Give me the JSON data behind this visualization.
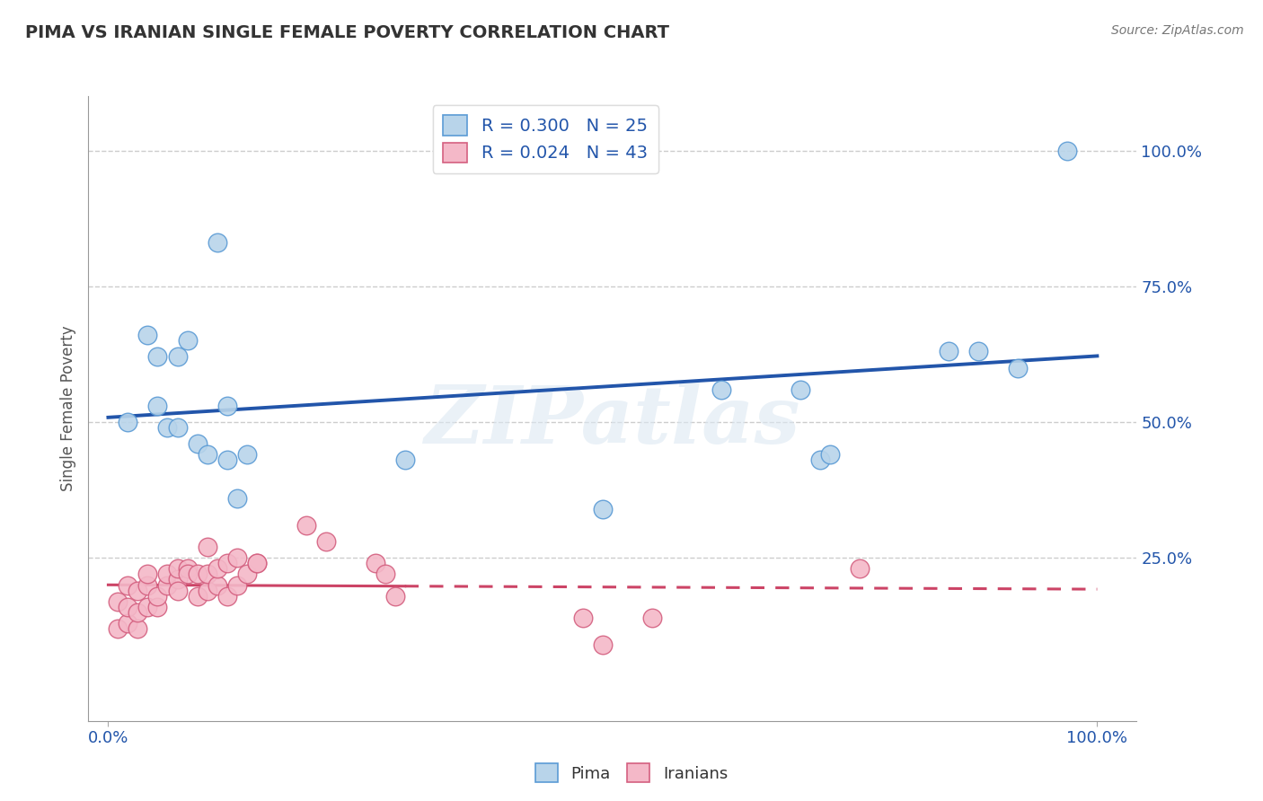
{
  "title": "PIMA VS IRANIAN SINGLE FEMALE POVERTY CORRELATION CHART",
  "source": "Source: ZipAtlas.com",
  "ylabel": "Single Female Poverty",
  "ytick_labels": [
    "100.0%",
    "75.0%",
    "50.0%",
    "25.0%"
  ],
  "ytick_values": [
    1.0,
    0.75,
    0.5,
    0.25
  ],
  "xtick_labels": [
    "0.0%",
    "100.0%"
  ],
  "xtick_values": [
    0.0,
    1.0
  ],
  "legend_r_pima": "R = 0.300",
  "legend_n_pima": "N = 25",
  "legend_r_iran": "R = 0.024",
  "legend_n_iran": "N = 43",
  "pima_color": "#b8d4ea",
  "pima_edge_color": "#5b9bd5",
  "iran_color": "#f4b8c8",
  "iran_edge_color": "#d46080",
  "pima_line_color": "#2255aa",
  "iran_line_color": "#cc4466",
  "watermark": "ZIPatlas",
  "pima_x": [
    0.02,
    0.04,
    0.05,
    0.05,
    0.06,
    0.07,
    0.07,
    0.08,
    0.09,
    0.1,
    0.11,
    0.12,
    0.12,
    0.13,
    0.14,
    0.3,
    0.5,
    0.62,
    0.7,
    0.72,
    0.73,
    0.85,
    0.88,
    0.92,
    0.97
  ],
  "pima_y": [
    0.5,
    0.66,
    0.62,
    0.53,
    0.49,
    0.62,
    0.49,
    0.65,
    0.46,
    0.44,
    0.83,
    0.43,
    0.53,
    0.36,
    0.44,
    0.43,
    0.34,
    0.56,
    0.56,
    0.43,
    0.44,
    0.63,
    0.63,
    0.6,
    1.0
  ],
  "iran_x": [
    0.01,
    0.01,
    0.02,
    0.02,
    0.02,
    0.03,
    0.03,
    0.03,
    0.04,
    0.04,
    0.04,
    0.05,
    0.05,
    0.06,
    0.06,
    0.07,
    0.07,
    0.07,
    0.08,
    0.08,
    0.09,
    0.09,
    0.1,
    0.1,
    0.1,
    0.11,
    0.11,
    0.12,
    0.12,
    0.13,
    0.13,
    0.14,
    0.15,
    0.15,
    0.2,
    0.22,
    0.27,
    0.28,
    0.29,
    0.48,
    0.55,
    0.76,
    0.5
  ],
  "iran_y": [
    0.12,
    0.17,
    0.13,
    0.16,
    0.2,
    0.12,
    0.15,
    0.19,
    0.16,
    0.2,
    0.22,
    0.16,
    0.18,
    0.2,
    0.22,
    0.21,
    0.23,
    0.19,
    0.23,
    0.22,
    0.18,
    0.22,
    0.19,
    0.22,
    0.27,
    0.2,
    0.23,
    0.18,
    0.24,
    0.2,
    0.25,
    0.22,
    0.24,
    0.24,
    0.31,
    0.28,
    0.24,
    0.22,
    0.18,
    0.14,
    0.14,
    0.23,
    0.09
  ],
  "background_color": "#ffffff",
  "grid_color": "#cccccc",
  "xlim": [
    -0.02,
    1.04
  ],
  "ylim": [
    -0.05,
    1.1
  ]
}
